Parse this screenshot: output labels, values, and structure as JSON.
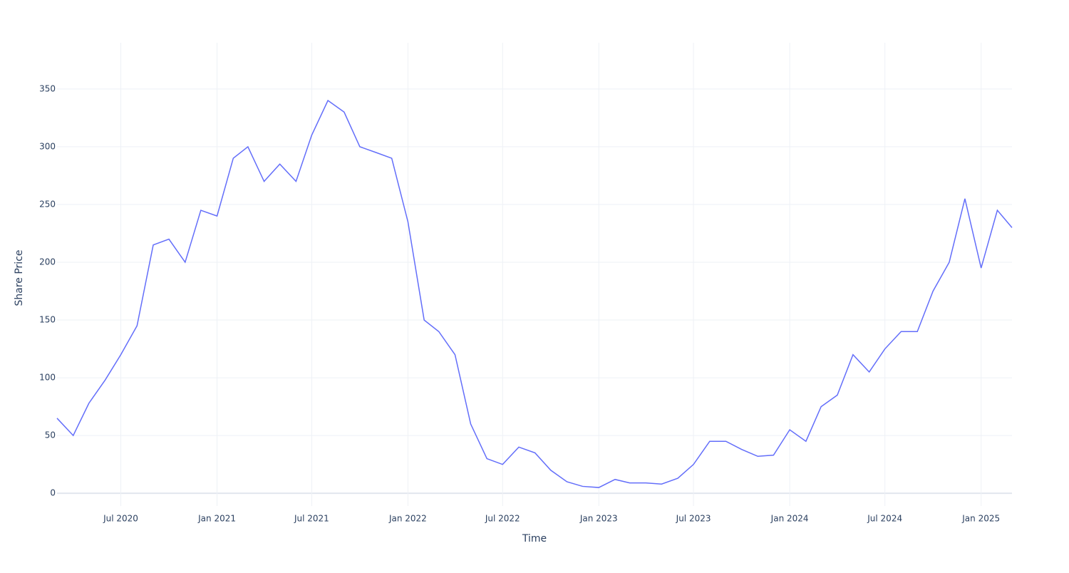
{
  "chart_data": {
    "type": "line",
    "x_label": "Time",
    "y_label": "Share Price",
    "x": [
      "2020-03",
      "2020-04",
      "2020-05",
      "2020-06",
      "2020-07",
      "2020-08",
      "2020-09",
      "2020-10",
      "2020-11",
      "2020-12",
      "2021-01",
      "2021-02",
      "2021-03",
      "2021-04",
      "2021-05",
      "2021-06",
      "2021-07",
      "2021-08",
      "2021-09",
      "2021-10",
      "2021-11",
      "2021-12",
      "2022-01",
      "2022-02",
      "2022-03",
      "2022-04",
      "2022-05",
      "2022-06",
      "2022-07",
      "2022-08",
      "2022-09",
      "2022-10",
      "2022-11",
      "2022-12",
      "2023-01",
      "2023-02",
      "2023-03",
      "2023-04",
      "2023-05",
      "2023-06",
      "2023-07",
      "2023-08",
      "2023-09",
      "2023-10",
      "2023-11",
      "2023-12",
      "2024-01",
      "2024-02",
      "2024-03",
      "2024-04",
      "2024-05",
      "2024-06",
      "2024-07",
      "2024-08",
      "2024-09",
      "2024-10",
      "2024-11",
      "2024-12",
      "2025-01",
      "2025-02",
      "2025-03"
    ],
    "series": [
      {
        "name": "Share Price",
        "color": "#636efa",
        "values": [
          65,
          50,
          78,
          98,
          120,
          145,
          215,
          220,
          200,
          245,
          240,
          290,
          300,
          270,
          285,
          270,
          310,
          340,
          330,
          300,
          295,
          290,
          235,
          150,
          140,
          120,
          60,
          30,
          25,
          40,
          35,
          20,
          10,
          6,
          5,
          12,
          9,
          9,
          8,
          13,
          25,
          45,
          45,
          38,
          32,
          33,
          55,
          45,
          75,
          85,
          120,
          105,
          125,
          140,
          140,
          175,
          200,
          255,
          195,
          245,
          230
        ]
      }
    ],
    "xlim": [
      "2020-03",
      "2025-03"
    ],
    "xticks": [
      {
        "value": "2020-07",
        "label": "Jul 2020"
      },
      {
        "value": "2021-01",
        "label": "Jan 2021"
      },
      {
        "value": "2021-07",
        "label": "Jul 2021"
      },
      {
        "value": "2022-01",
        "label": "Jan 2022"
      },
      {
        "value": "2022-07",
        "label": "Jul 2022"
      },
      {
        "value": "2023-01",
        "label": "Jan 2023"
      },
      {
        "value": "2023-07",
        "label": "Jul 2023"
      },
      {
        "value": "2024-01",
        "label": "Jan 2024"
      },
      {
        "value": "2024-07",
        "label": "Jul 2024"
      },
      {
        "value": "2025-01",
        "label": "Jan 2025"
      }
    ],
    "ylim": [
      -11,
      390
    ],
    "yticks": [
      0,
      50,
      100,
      150,
      200,
      250,
      300,
      350
    ],
    "grid": true
  }
}
